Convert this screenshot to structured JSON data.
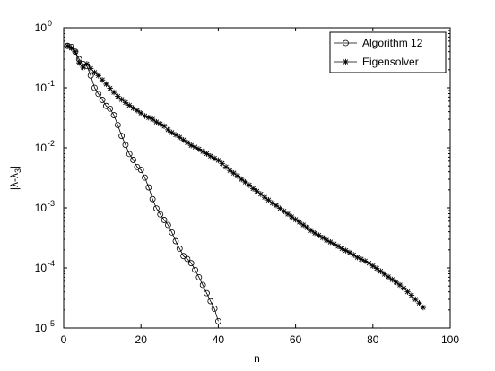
{
  "chart_data": {
    "type": "line",
    "title": "",
    "xlabel": "n",
    "ylabel_main": "|λ-λ",
    "ylabel_sub": "3",
    "ylabel_end": "|",
    "xlim": [
      0,
      100
    ],
    "ylim": [
      1e-05,
      1
    ],
    "yscale": "log",
    "grid": false,
    "legend": "top-right",
    "x_ticks": [
      0,
      20,
      40,
      60,
      80,
      100
    ],
    "x_tick_labels": [
      "0",
      "20",
      "40",
      "60",
      "80",
      "100"
    ],
    "y_ticks": [
      1e-05,
      0.0001,
      0.001,
      0.01,
      0.1,
      1
    ],
    "y_tick_bases": [
      "10",
      "10",
      "10",
      "10",
      "10",
      "10"
    ],
    "y_tick_exps": [
      "-5",
      "-4",
      "-3",
      "-2",
      "-1",
      "0"
    ],
    "series": [
      {
        "name": "Algorithm 12",
        "marker": "circle",
        "color": "#000000",
        "x": [
          1,
          2,
          3,
          4,
          5,
          6,
          7,
          8,
          9,
          10,
          11,
          12,
          13,
          14,
          15,
          16,
          17,
          18,
          19,
          20,
          21,
          22,
          23,
          24,
          25,
          26,
          27,
          28,
          29,
          30,
          31,
          32,
          33,
          34,
          35,
          36,
          37,
          38,
          39,
          40
        ],
        "y": [
          0.5,
          0.48,
          0.4,
          0.3,
          0.25,
          0.23,
          0.16,
          0.1,
          0.079,
          0.063,
          0.05,
          0.045,
          0.035,
          0.024,
          0.0158,
          0.0112,
          0.0079,
          0.0063,
          0.0048,
          0.0043,
          0.0032,
          0.0022,
          0.0014,
          0.00098,
          0.00078,
          0.00063,
          0.00052,
          0.00039,
          0.00028,
          0.00021,
          0.000158,
          0.000141,
          0.00012,
          9.3e-05,
          7e-05,
          5.2e-05,
          3.8e-05,
          2.8e-05,
          2.1e-05,
          1.3e-05
        ]
      },
      {
        "name": "Eigensolver",
        "marker": "star",
        "color": "#000000",
        "x": [
          1,
          2,
          3,
          4,
          5,
          6,
          7,
          8,
          9,
          10,
          11,
          12,
          13,
          14,
          15,
          16,
          17,
          18,
          19,
          20,
          21,
          22,
          23,
          24,
          25,
          26,
          27,
          28,
          29,
          30,
          31,
          32,
          33,
          34,
          35,
          36,
          37,
          38,
          39,
          40,
          41,
          42,
          43,
          44,
          45,
          46,
          47,
          48,
          49,
          50,
          51,
          52,
          53,
          54,
          55,
          56,
          57,
          58,
          59,
          60,
          61,
          62,
          63,
          64,
          65,
          66,
          67,
          68,
          69,
          70,
          71,
          72,
          73,
          74,
          75,
          76,
          77,
          78,
          79,
          80,
          81,
          82,
          83,
          84,
          85,
          86,
          87,
          88,
          89,
          90,
          91,
          92,
          93
        ],
        "y": [
          0.5,
          0.46,
          0.4,
          0.26,
          0.22,
          0.25,
          0.21,
          0.18,
          0.16,
          0.135,
          0.115,
          0.098,
          0.084,
          0.072,
          0.064,
          0.057,
          0.051,
          0.046,
          0.042,
          0.038,
          0.034,
          0.032,
          0.03,
          0.027,
          0.025,
          0.023,
          0.02,
          0.018,
          0.0165,
          0.015,
          0.0135,
          0.0122,
          0.011,
          0.0103,
          0.0095,
          0.0087,
          0.008,
          0.0073,
          0.0067,
          0.0062,
          0.0055,
          0.0048,
          0.0042,
          0.0038,
          0.0034,
          0.003,
          0.0027,
          0.0024,
          0.0021,
          0.0019,
          0.0017,
          0.0015,
          0.00135,
          0.0012,
          0.0011,
          0.00098,
          0.00088,
          0.00079,
          0.00071,
          0.00064,
          0.00058,
          0.00052,
          0.00047,
          0.00042,
          0.00038,
          0.00035,
          0.00032,
          0.00029,
          0.00027,
          0.00025,
          0.00023,
          0.00021,
          0.000195,
          0.00018,
          0.000165,
          0.00015,
          0.00014,
          0.00013,
          0.00012,
          0.000108,
          9.8e-05,
          8.8e-05,
          7.9e-05,
          7.1e-05,
          6.4e-05,
          5.8e-05,
          5.2e-05,
          4.6e-05,
          4e-05,
          3.5e-05,
          3e-05,
          2.6e-05,
          2.2e-05
        ]
      }
    ]
  }
}
